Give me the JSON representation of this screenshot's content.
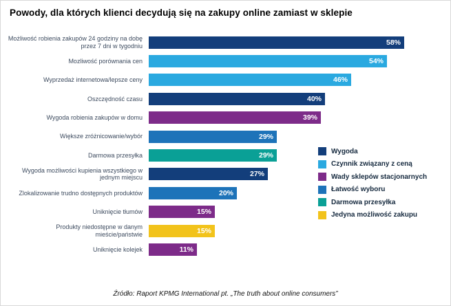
{
  "title": "Powody, dla których klienci decydują się na zakupy online zamiast w sklepie",
  "source": "Źródło: Raport KPMG International pt. „The truth about online consumers”",
  "palette": {
    "wygoda": "#133E7B",
    "cena": "#2AA9E0",
    "wady": "#7D2B89",
    "wybor": "#1D73B9",
    "przesylka": "#0AA096",
    "zakup": "#F2C31B"
  },
  "chart_data": {
    "type": "bar",
    "orientation": "horizontal",
    "title": "Powody, dla których klienci decydują się na zakupy online zamiast w sklepie",
    "xlabel": "",
    "ylabel": "",
    "xlim": [
      0,
      62
    ],
    "grid": false,
    "value_suffix": "%",
    "categories": [
      "Możliwość robienia zakupów 24 godziny na dobę przez 7 dni w tygodniu",
      "Mozliwość porównania cen",
      "Wyprzedaż internetowa/lepsze ceny",
      "Oszczędność czasu",
      "Wygoda robienia zakupów w domu",
      "Większe zróżnicowanie/wybór",
      "Darmowa przesyłka",
      "Wygoda możliwości kupienia wszystkiego w jednym miejscu",
      "Zlokalizowanie trudno dostępnych produktów",
      "Uniknięcie tłumów",
      "Produkty niedostępne w danym mieście/państwie",
      "Uniknięcie kolejek"
    ],
    "values": [
      58,
      54,
      46,
      40,
      39,
      29,
      29,
      27,
      20,
      15,
      15,
      11
    ],
    "color_keys": [
      "wygoda",
      "cena",
      "cena",
      "wygoda",
      "wady",
      "wybor",
      "przesylka",
      "wygoda",
      "wybor",
      "wady",
      "zakup",
      "wady"
    ],
    "legend_position": "right",
    "legend": [
      {
        "label": "Wygoda",
        "color_key": "wygoda"
      },
      {
        "label": "Czynnik związany z ceną",
        "color_key": "cena"
      },
      {
        "label": "Wady sklepów stacjonarnych",
        "color_key": "wady"
      },
      {
        "label": "Łatwość wyboru",
        "color_key": "wybor"
      },
      {
        "label": "Darmowa przesyłka",
        "color_key": "przesylka"
      },
      {
        "label": "Jedyna możliwość zakupu",
        "color_key": "zakup"
      }
    ]
  }
}
